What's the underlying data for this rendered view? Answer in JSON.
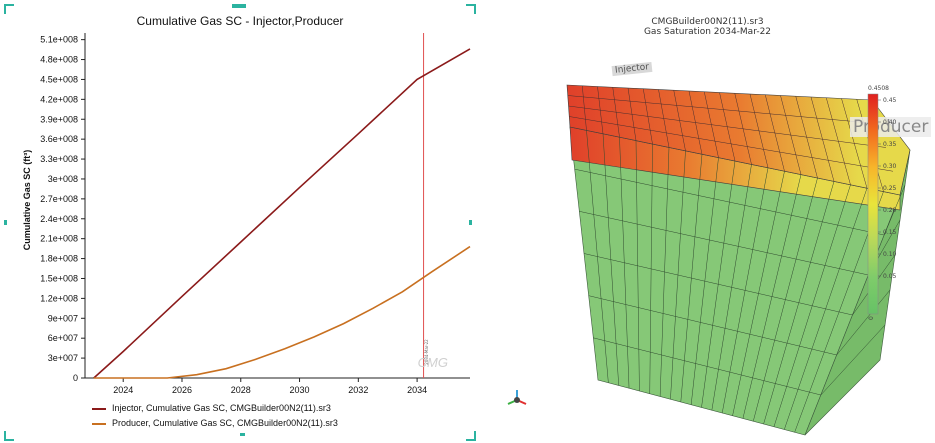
{
  "left_panel": {
    "watermark": "CMG",
    "cursor_label": "2034-Mar-22"
  },
  "chart_data": {
    "type": "line",
    "title": "Cumulative Gas SC - Injector,Producer",
    "xlabel": "",
    "ylabel": "Cumulative Gas SC (ft³)",
    "x_tick_labels": [
      "2024",
      "2026",
      "2028",
      "2030",
      "2032",
      "2034"
    ],
    "x_ticks": [
      2024,
      2026,
      2028,
      2030,
      2032,
      2034
    ],
    "xlim": [
      2022.7,
      2035.8
    ],
    "y_tick_labels": [
      "0",
      "3e+007",
      "6e+007",
      "9e+007",
      "1.2e+008",
      "1.5e+008",
      "1.8e+008",
      "2.1e+008",
      "2.4e+008",
      "2.7e+008",
      "3e+008",
      "3.3e+008",
      "3.6e+008",
      "3.9e+008",
      "4.2e+008",
      "4.5e+008",
      "4.8e+008",
      "5.1e+008"
    ],
    "ylim": [
      0,
      520000000
    ],
    "cursor_x": 2034.22,
    "grid": false,
    "legend_position": "bottom",
    "series": [
      {
        "name": "Injector, Cumulative Gas SC, CMGBuilder00N2(11).sr3",
        "color": "#8b1a1a",
        "x": [
          2023.0,
          2024.0,
          2026.0,
          2028.0,
          2030.0,
          2032.0,
          2034.0,
          2035.8
        ],
        "values": [
          0,
          40000000,
          123000000,
          205000000,
          287000000,
          368000000,
          450000000,
          496000000
        ]
      },
      {
        "name": "Producer, Cumulative Gas SC, CMGBuilder00N2(11).sr3",
        "color": "#c87020",
        "x": [
          2023.0,
          2025.5,
          2026.5,
          2027.5,
          2028.5,
          2029.5,
          2030.5,
          2031.5,
          2032.5,
          2033.5,
          2034.5,
          2035.8
        ],
        "values": [
          0,
          0,
          5000000,
          14000000,
          28000000,
          44000000,
          62000000,
          82000000,
          105000000,
          130000000,
          160000000,
          198000000
        ]
      }
    ]
  },
  "view3d": {
    "title_line1": "CMGBuilder00N2(11).sr3",
    "title_line2": "Gas Saturation  2034-Mar-22",
    "well_injector": "Injector",
    "well_producer": "Producer",
    "colorbar": {
      "max_label": "0.4508",
      "ticks": [
        "0.45",
        "0.40",
        "0.35",
        "0.30",
        "0.25",
        "0.20",
        "0.15",
        "0.10",
        "0.05"
      ],
      "min_label": "0",
      "colors": [
        "#e02020",
        "#f26a1f",
        "#f7b52a",
        "#e9e43a",
        "#b8d85a",
        "#7fcc6a",
        "#66c266"
      ]
    },
    "cell_colors": {
      "top_red": "#e0402a",
      "top_orange": "#e97a30",
      "top_yellow": "#e6d94a",
      "body_green": "#86c877",
      "side_green": "#77bb69"
    }
  }
}
